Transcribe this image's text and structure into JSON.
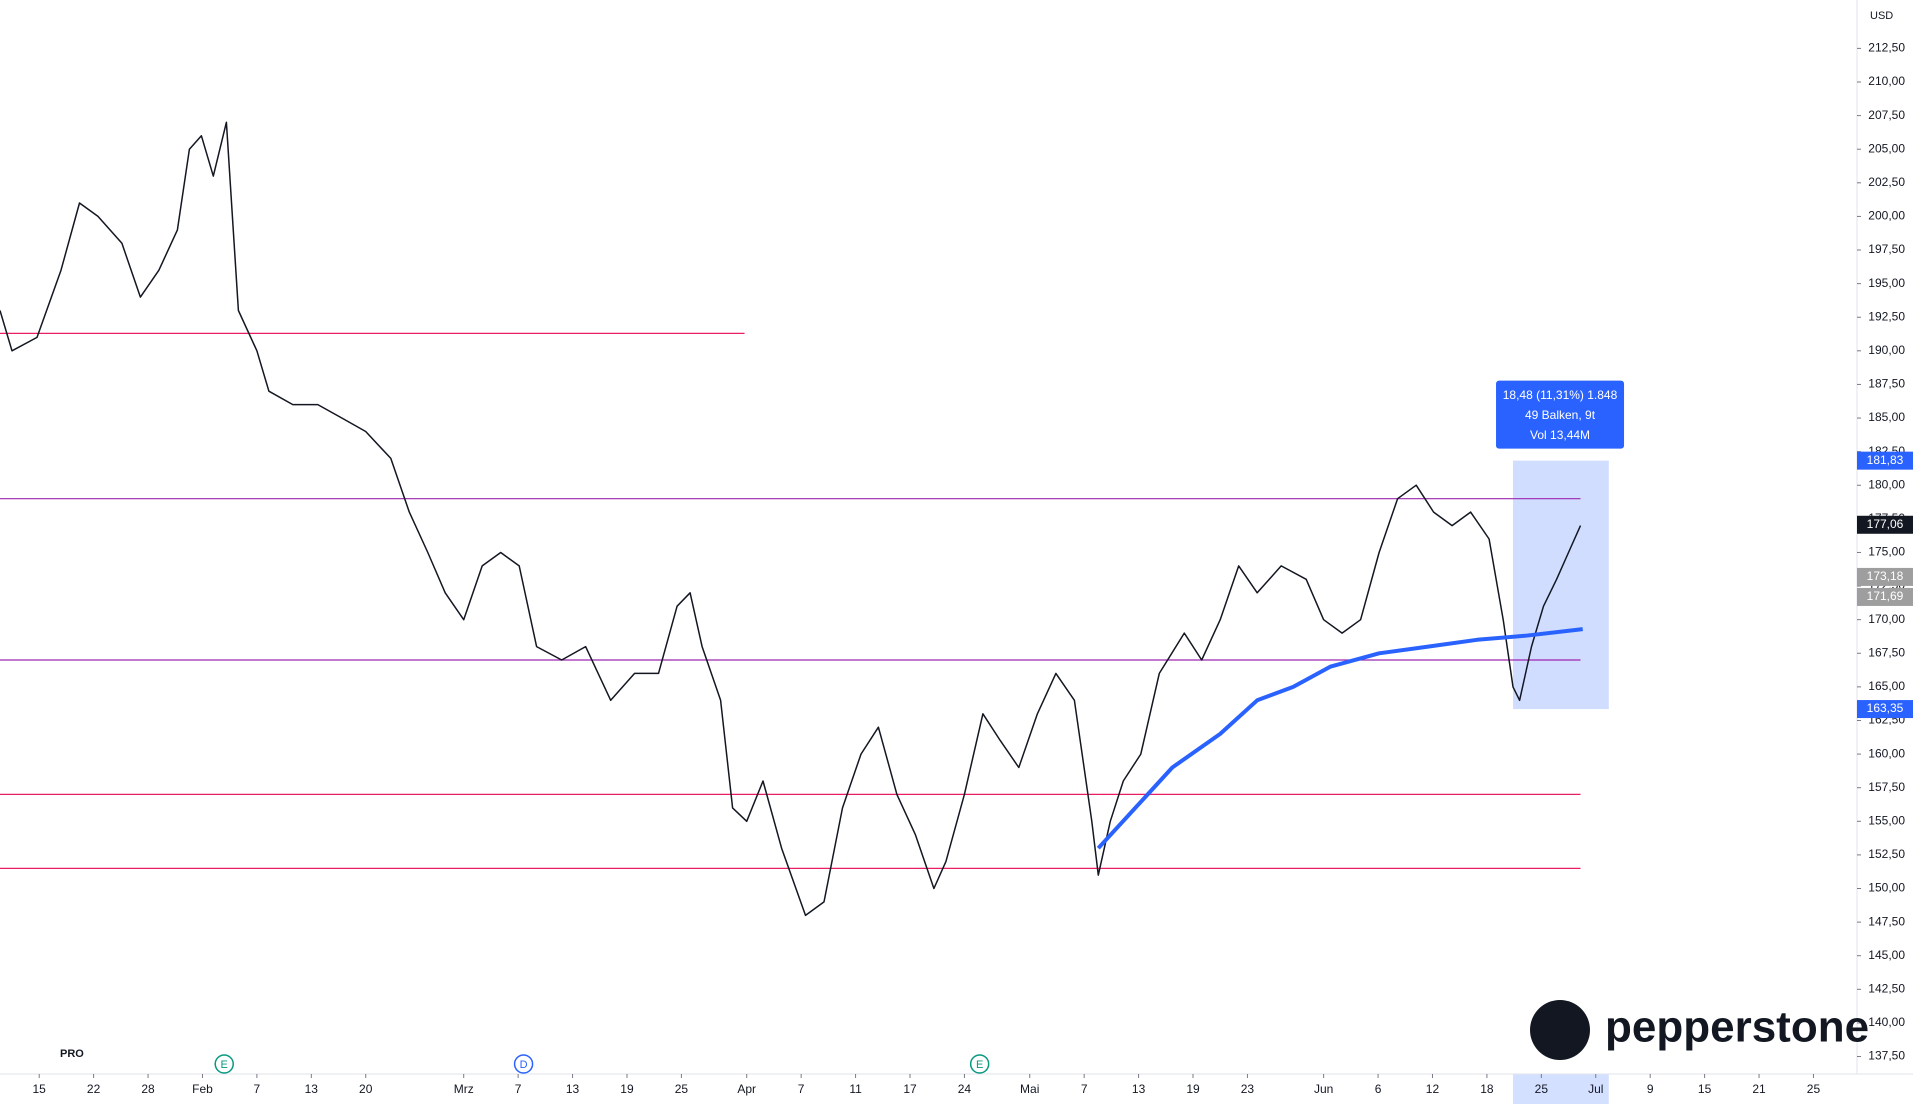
{
  "chart_data": {
    "type": "line",
    "currency": "USD",
    "xlim": [
      -3.6,
      167
    ],
    "ylim": [
      136.2,
      216.1
    ],
    "xticks": [
      {
        "value": 0,
        "label": "15"
      },
      {
        "value": 5,
        "label": "22"
      },
      {
        "value": 10,
        "label": "28"
      },
      {
        "value": 15,
        "label": "Feb"
      },
      {
        "value": 20,
        "label": "7"
      },
      {
        "value": 25,
        "label": "13"
      },
      {
        "value": 30,
        "label": "20"
      },
      {
        "value": 39,
        "label": "Mrz"
      },
      {
        "value": 44,
        "label": "7"
      },
      {
        "value": 49,
        "label": "13"
      },
      {
        "value": 54,
        "label": "19"
      },
      {
        "value": 59,
        "label": "25"
      },
      {
        "value": 65,
        "label": "Apr"
      },
      {
        "value": 70,
        "label": "7"
      },
      {
        "value": 75,
        "label": "11"
      },
      {
        "value": 80,
        "label": "17"
      },
      {
        "value": 85,
        "label": "24"
      },
      {
        "value": 91,
        "label": "Mai"
      },
      {
        "value": 96,
        "label": "7"
      },
      {
        "value": 101,
        "label": "13"
      },
      {
        "value": 106,
        "label": "19"
      },
      {
        "value": 111,
        "label": "23"
      },
      {
        "value": 118,
        "label": "Jun"
      },
      {
        "value": 123,
        "label": "6"
      },
      {
        "value": 128,
        "label": "12"
      },
      {
        "value": 133,
        "label": "18"
      },
      {
        "value": 138,
        "label": "25"
      },
      {
        "value": 143,
        "label": "Jul"
      },
      {
        "value": 148,
        "label": "9"
      },
      {
        "value": 153,
        "label": "15"
      },
      {
        "value": 158,
        "label": "21"
      },
      {
        "value": 163,
        "label": "25"
      }
    ],
    "yticks": [
      {
        "value": 212.5,
        "label": "212,50"
      },
      {
        "value": 210,
        "label": "210,00"
      },
      {
        "value": 207.5,
        "label": "207,50"
      },
      {
        "value": 205,
        "label": "205,00"
      },
      {
        "value": 202.5,
        "label": "202,50"
      },
      {
        "value": 200,
        "label": "200,00"
      },
      {
        "value": 197.5,
        "label": "197,50"
      },
      {
        "value": 195,
        "label": "195,00"
      },
      {
        "value": 192.5,
        "label": "192,50"
      },
      {
        "value": 190,
        "label": "190,00"
      },
      {
        "value": 187.5,
        "label": "187,50"
      },
      {
        "value": 185,
        "label": "185,00"
      },
      {
        "value": 182.5,
        "label": "182,50"
      },
      {
        "value": 180,
        "label": "180,00"
      },
      {
        "value": 177.5,
        "label": "177,50"
      },
      {
        "value": 175,
        "label": "175,00"
      },
      {
        "value": 172.5,
        "label": "172,50"
      },
      {
        "value": 170,
        "label": "170,00"
      },
      {
        "value": 167.5,
        "label": "167,50"
      },
      {
        "value": 165,
        "label": "165,00"
      },
      {
        "value": 162.5,
        "label": "162,50"
      },
      {
        "value": 160,
        "label": "160,00"
      },
      {
        "value": 157.5,
        "label": "157,50"
      },
      {
        "value": 155,
        "label": "155,00"
      },
      {
        "value": 152.5,
        "label": "152,50"
      },
      {
        "value": 150,
        "label": "150,00"
      },
      {
        "value": 147.5,
        "label": "147,50"
      },
      {
        "value": 145,
        "label": "145,00"
      },
      {
        "value": 142.5,
        "label": "142,50"
      },
      {
        "value": 140,
        "label": "140,00"
      },
      {
        "value": 137.5,
        "label": "137,50"
      }
    ],
    "series": [
      {
        "color": "#131722",
        "width": 1.5,
        "x": [
          -3.6,
          -2.5,
          -0.2,
          2.0,
          3.7,
          5.4,
          7.6,
          9.3,
          11.0,
          12.7,
          13.8,
          14.9,
          16.0,
          17.2,
          18.3,
          20.0,
          21.1,
          23.3,
          25.6,
          27.8,
          30.0,
          32.3,
          34.0,
          35.7,
          37.3,
          39.0,
          40.7,
          42.4,
          44.1,
          45.7,
          48.0,
          50.2,
          52.5,
          54.7,
          56.9,
          58.6,
          59.8,
          60.9,
          62.6,
          63.7,
          65.0,
          66.5,
          68.2,
          70.4,
          72.1,
          73.8,
          75.5,
          77.1,
          78.8,
          80.5,
          82.2,
          83.3,
          85.0,
          86.7,
          88.3,
          90.0,
          91.7,
          93.4,
          95.1,
          96.7,
          97.3,
          98.4,
          99.6,
          101.2,
          102.9,
          105.2,
          106.8,
          108.5,
          110.2,
          111.9,
          114.1,
          116.4,
          118.0,
          119.7,
          121.4,
          123.1,
          124.8,
          126.5,
          128.1,
          129.8,
          131.5,
          133.2,
          134.5,
          135.4,
          136.0,
          137.1,
          138.2,
          139.4,
          140.5,
          141.6
        ],
        "values": [
          193,
          190,
          191,
          196,
          201,
          200,
          198,
          194,
          196,
          199,
          205,
          206,
          203,
          207,
          193,
          190,
          187,
          186,
          186,
          185,
          184,
          182,
          178,
          175,
          172,
          170,
          174,
          175,
          174,
          168,
          167,
          168,
          164,
          166,
          166,
          171,
          172,
          168,
          164,
          156,
          155,
          158,
          153,
          148,
          149,
          156,
          160,
          162,
          157,
          154,
          150,
          152,
          157,
          163,
          161,
          159,
          163,
          166,
          164,
          155,
          151,
          155,
          158,
          160,
          166,
          169,
          167,
          170,
          174,
          172,
          174,
          173,
          170,
          169,
          170,
          175,
          179,
          180,
          178,
          177,
          178,
          176,
          170,
          165,
          164,
          168,
          171,
          173,
          175,
          177
        ]
      },
      {
        "color": "#2962ff",
        "width": 4,
        "x": [
          97.3,
          100.7,
          104.1,
          108.5,
          111.9,
          115.2,
          118.6,
          123.1,
          127.6,
          132.1,
          136.5,
          141.8
        ],
        "values": [
          153,
          156,
          159,
          161.5,
          164,
          165,
          166.5,
          167.5,
          168,
          168.5,
          168.8,
          169.3
        ]
      }
    ],
    "levels": [
      {
        "value": 179,
        "color": "#9c27b0",
        "x_end": 141.6
      },
      {
        "value": 191.3,
        "color": "#e91e63",
        "x_end": 64.8
      },
      {
        "value": 157,
        "color": "#e91e63",
        "x_end": 141.6
      },
      {
        "value": 151.5,
        "color": "#e91e63",
        "x_end": 141.6
      },
      {
        "value": 167,
        "color": "#9c27b0",
        "x_end": 141.6
      }
    ],
    "price_tags": [
      {
        "value": 181.83,
        "label": "181,83",
        "color": "#2962ff"
      },
      {
        "value": 177.06,
        "label": "177,06",
        "color": "#131722"
      },
      {
        "value": 173.18,
        "label": "173,18",
        "color": "#9e9e9e"
      },
      {
        "value": 171.69,
        "label": "171,69",
        "color": "#9e9e9e"
      },
      {
        "value": 163.35,
        "label": "163,35",
        "color": "#2962ff"
      }
    ],
    "measure": {
      "from": 163.35,
      "to": 181.83,
      "x_start": 135.4,
      "x_end": 144.2,
      "lines": [
        "18,48 (11,31%) 1.848",
        "49 Balken, 9t",
        "Vol 13,44M"
      ]
    },
    "events": [
      {
        "x": 17,
        "label": "E"
      },
      {
        "x": 44.5,
        "label": "D"
      },
      {
        "x": 86.4,
        "label": "E"
      }
    ],
    "brand": "pepperstone",
    "badge": "PRO"
  }
}
